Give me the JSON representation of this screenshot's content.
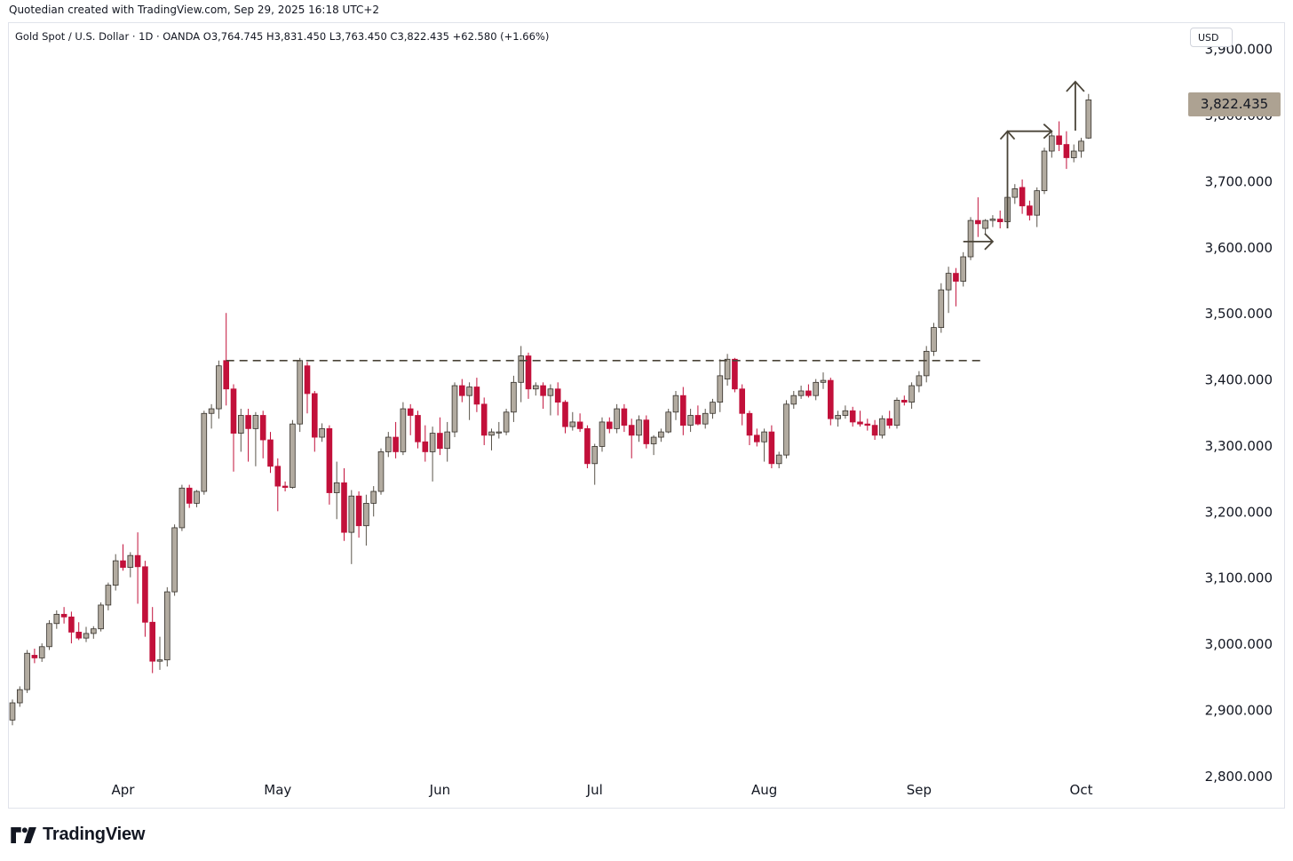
{
  "caption": "Quotedian created with TradingView.com, Sep 29, 2025 16:18 UTC+2",
  "legend": {
    "title": "Gold Spot / U.S. Dollar · 1D · OANDA  O3,764.745  H3,831.450  L3,763.450  C3,822.435  +62.580 (+1.66%)"
  },
  "currency": "USD",
  "last_price": "3,822.435",
  "brand": {
    "name": "TradingView",
    "icon": "tradingview-logo-icon"
  },
  "colors": {
    "up": "#b2aba0",
    "down": "#c2103a",
    "up_border": "#34302a",
    "annotation": "#4a4438",
    "price_tag": "#ada292"
  },
  "chart_data": {
    "type": "candlestick",
    "symbol": "Gold Spot / U.S. Dollar",
    "interval": "1D",
    "exchange": "OANDA",
    "ylim": [
      2750,
      3940
    ],
    "yticks": [
      2800,
      2900,
      3000,
      3100,
      3200,
      3300,
      3400,
      3500,
      3600,
      3700,
      3800,
      3900
    ],
    "ytick_labels": [
      "2,800.000",
      "2,900.000",
      "3,000.000",
      "3,100.000",
      "3,200.000",
      "3,300.000",
      "3,400.000",
      "3,500.000",
      "3,600.000",
      "3,700.000",
      "3,800.000",
      "3,900.000"
    ],
    "xticks": [
      {
        "label": "Apr",
        "index": 15
      },
      {
        "label": "May",
        "index": 36
      },
      {
        "label": "Jun",
        "index": 58
      },
      {
        "label": "Jul",
        "index": 79
      },
      {
        "label": "Aug",
        "index": 102
      },
      {
        "label": "Sep",
        "index": 123
      },
      {
        "label": "Oct",
        "index": 145
      }
    ],
    "resistance_level": 3428,
    "annotations": [
      {
        "type": "dashed-horizontal-line",
        "value": 3428,
        "from_index": 29,
        "to_index": 132
      },
      {
        "type": "right-arrow",
        "from_index": 129,
        "to_index": 133,
        "value": 3608
      },
      {
        "type": "up-right-arrow",
        "from_index": 135,
        "from_value": 3628,
        "corner_value": 3775,
        "to_index": 141
      },
      {
        "type": "up-arrow",
        "index": 143,
        "from_value": 3776,
        "to_value": 3850
      }
    ],
    "candles": [
      {
        "o": 2884,
        "h": 2915,
        "l": 2876,
        "c": 2910
      },
      {
        "o": 2910,
        "h": 2935,
        "l": 2904,
        "c": 2930
      },
      {
        "o": 2930,
        "h": 2990,
        "l": 2925,
        "c": 2985
      },
      {
        "o": 2982,
        "h": 2992,
        "l": 2970,
        "c": 2978
      },
      {
        "o": 2978,
        "h": 3000,
        "l": 2972,
        "c": 2995
      },
      {
        "o": 2995,
        "h": 3035,
        "l": 2990,
        "c": 3030
      },
      {
        "o": 3030,
        "h": 3050,
        "l": 3022,
        "c": 3044
      },
      {
        "o": 3044,
        "h": 3055,
        "l": 3030,
        "c": 3040
      },
      {
        "o": 3040,
        "h": 3048,
        "l": 3000,
        "c": 3017
      },
      {
        "o": 3017,
        "h": 3032,
        "l": 3005,
        "c": 3008
      },
      {
        "o": 3008,
        "h": 3025,
        "l": 3002,
        "c": 3015
      },
      {
        "o": 3015,
        "h": 3026,
        "l": 3007,
        "c": 3022
      },
      {
        "o": 3022,
        "h": 3062,
        "l": 3018,
        "c": 3058
      },
      {
        "o": 3058,
        "h": 3092,
        "l": 3050,
        "c": 3088
      },
      {
        "o": 3088,
        "h": 3135,
        "l": 3080,
        "c": 3125
      },
      {
        "o": 3125,
        "h": 3150,
        "l": 3110,
        "c": 3115
      },
      {
        "o": 3115,
        "h": 3138,
        "l": 3100,
        "c": 3133
      },
      {
        "o": 3133,
        "h": 3168,
        "l": 3060,
        "c": 3116
      },
      {
        "o": 3116,
        "h": 3125,
        "l": 3010,
        "c": 3032
      },
      {
        "o": 3032,
        "h": 3055,
        "l": 2955,
        "c": 2973
      },
      {
        "o": 2973,
        "h": 3010,
        "l": 2960,
        "c": 2975
      },
      {
        "o": 2975,
        "h": 3085,
        "l": 2965,
        "c": 3078
      },
      {
        "o": 3078,
        "h": 3180,
        "l": 3072,
        "c": 3175
      },
      {
        "o": 3175,
        "h": 3240,
        "l": 3170,
        "c": 3235
      },
      {
        "o": 3235,
        "h": 3240,
        "l": 3205,
        "c": 3212
      },
      {
        "o": 3212,
        "h": 3232,
        "l": 3206,
        "c": 3230
      },
      {
        "o": 3230,
        "h": 3352,
        "l": 3225,
        "c": 3348
      },
      {
        "o": 3348,
        "h": 3362,
        "l": 3325,
        "c": 3355
      },
      {
        "o": 3355,
        "h": 3428,
        "l": 3340,
        "c": 3420
      },
      {
        "o": 3428,
        "h": 3500,
        "l": 3360,
        "c": 3385
      },
      {
        "o": 3385,
        "h": 3392,
        "l": 3260,
        "c": 3318
      },
      {
        "o": 3318,
        "h": 3355,
        "l": 3290,
        "c": 3345
      },
      {
        "o": 3345,
        "h": 3355,
        "l": 3275,
        "c": 3325
      },
      {
        "o": 3325,
        "h": 3350,
        "l": 3268,
        "c": 3345
      },
      {
        "o": 3345,
        "h": 3352,
        "l": 3280,
        "c": 3308
      },
      {
        "o": 3308,
        "h": 3320,
        "l": 3258,
        "c": 3268
      },
      {
        "o": 3268,
        "h": 3280,
        "l": 3200,
        "c": 3238
      },
      {
        "o": 3238,
        "h": 3245,
        "l": 3230,
        "c": 3236
      },
      {
        "o": 3236,
        "h": 3338,
        "l": 3234,
        "c": 3332
      },
      {
        "o": 3332,
        "h": 3432,
        "l": 3320,
        "c": 3428
      },
      {
        "o": 3420,
        "h": 3426,
        "l": 3348,
        "c": 3378
      },
      {
        "o": 3378,
        "h": 3382,
        "l": 3290,
        "c": 3312
      },
      {
        "o": 3312,
        "h": 3333,
        "l": 3305,
        "c": 3325
      },
      {
        "o": 3325,
        "h": 3330,
        "l": 3210,
        "c": 3228
      },
      {
        "o": 3228,
        "h": 3275,
        "l": 3188,
        "c": 3243
      },
      {
        "o": 3243,
        "h": 3265,
        "l": 3155,
        "c": 3168
      },
      {
        "o": 3168,
        "h": 3232,
        "l": 3120,
        "c": 3223
      },
      {
        "o": 3223,
        "h": 3230,
        "l": 3160,
        "c": 3178
      },
      {
        "o": 3178,
        "h": 3225,
        "l": 3148,
        "c": 3212
      },
      {
        "o": 3212,
        "h": 3238,
        "l": 3192,
        "c": 3230
      },
      {
        "o": 3230,
        "h": 3295,
        "l": 3225,
        "c": 3290
      },
      {
        "o": 3290,
        "h": 3320,
        "l": 3282,
        "c": 3312
      },
      {
        "o": 3312,
        "h": 3335,
        "l": 3280,
        "c": 3290
      },
      {
        "o": 3290,
        "h": 3365,
        "l": 3285,
        "c": 3355
      },
      {
        "o": 3355,
        "h": 3362,
        "l": 3315,
        "c": 3345
      },
      {
        "o": 3345,
        "h": 3352,
        "l": 3295,
        "c": 3305
      },
      {
        "o": 3305,
        "h": 3330,
        "l": 3275,
        "c": 3290
      },
      {
        "o": 3290,
        "h": 3328,
        "l": 3245,
        "c": 3318
      },
      {
        "o": 3318,
        "h": 3342,
        "l": 3285,
        "c": 3295
      },
      {
        "o": 3295,
        "h": 3335,
        "l": 3275,
        "c": 3320
      },
      {
        "o": 3320,
        "h": 3395,
        "l": 3312,
        "c": 3390
      },
      {
        "o": 3390,
        "h": 3400,
        "l": 3365,
        "c": 3375
      },
      {
        "o": 3375,
        "h": 3395,
        "l": 3338,
        "c": 3388
      },
      {
        "o": 3388,
        "h": 3402,
        "l": 3350,
        "c": 3362
      },
      {
        "o": 3362,
        "h": 3372,
        "l": 3300,
        "c": 3315
      },
      {
        "o": 3315,
        "h": 3325,
        "l": 3292,
        "c": 3320
      },
      {
        "o": 3320,
        "h": 3335,
        "l": 3310,
        "c": 3320
      },
      {
        "o": 3320,
        "h": 3355,
        "l": 3315,
        "c": 3350
      },
      {
        "o": 3350,
        "h": 3405,
        "l": 3335,
        "c": 3395
      },
      {
        "o": 3395,
        "h": 3450,
        "l": 3365,
        "c": 3435
      },
      {
        "o": 3435,
        "h": 3440,
        "l": 3370,
        "c": 3385
      },
      {
        "o": 3385,
        "h": 3395,
        "l": 3375,
        "c": 3390
      },
      {
        "o": 3390,
        "h": 3395,
        "l": 3355,
        "c": 3375
      },
      {
        "o": 3375,
        "h": 3392,
        "l": 3345,
        "c": 3385
      },
      {
        "o": 3385,
        "h": 3395,
        "l": 3345,
        "c": 3365
      },
      {
        "o": 3365,
        "h": 3368,
        "l": 3318,
        "c": 3328
      },
      {
        "o": 3328,
        "h": 3350,
        "l": 3322,
        "c": 3335
      },
      {
        "o": 3335,
        "h": 3348,
        "l": 3320,
        "c": 3325
      },
      {
        "o": 3325,
        "h": 3330,
        "l": 3265,
        "c": 3272
      },
      {
        "o": 3272,
        "h": 3302,
        "l": 3240,
        "c": 3298
      },
      {
        "o": 3298,
        "h": 3342,
        "l": 3290,
        "c": 3335
      },
      {
        "o": 3335,
        "h": 3342,
        "l": 3318,
        "c": 3325
      },
      {
        "o": 3325,
        "h": 3362,
        "l": 3318,
        "c": 3355
      },
      {
        "o": 3355,
        "h": 3362,
        "l": 3320,
        "c": 3330
      },
      {
        "o": 3330,
        "h": 3340,
        "l": 3280,
        "c": 3315
      },
      {
        "o": 3315,
        "h": 3345,
        "l": 3305,
        "c": 3338
      },
      {
        "o": 3338,
        "h": 3345,
        "l": 3295,
        "c": 3302
      },
      {
        "o": 3302,
        "h": 3315,
        "l": 3285,
        "c": 3312
      },
      {
        "o": 3312,
        "h": 3325,
        "l": 3305,
        "c": 3320
      },
      {
        "o": 3320,
        "h": 3355,
        "l": 3318,
        "c": 3350
      },
      {
        "o": 3350,
        "h": 3382,
        "l": 3338,
        "c": 3375
      },
      {
        "o": 3375,
        "h": 3388,
        "l": 3315,
        "c": 3330
      },
      {
        "o": 3330,
        "h": 3355,
        "l": 3320,
        "c": 3345
      },
      {
        "o": 3345,
        "h": 3360,
        "l": 3330,
        "c": 3332
      },
      {
        "o": 3332,
        "h": 3355,
        "l": 3325,
        "c": 3348
      },
      {
        "o": 3348,
        "h": 3370,
        "l": 3340,
        "c": 3365
      },
      {
        "o": 3365,
        "h": 3430,
        "l": 3350,
        "c": 3405
      },
      {
        "o": 3400,
        "h": 3438,
        "l": 3390,
        "c": 3430
      },
      {
        "o": 3430,
        "h": 3432,
        "l": 3380,
        "c": 3385
      },
      {
        "o": 3385,
        "h": 3392,
        "l": 3330,
        "c": 3348
      },
      {
        "o": 3348,
        "h": 3352,
        "l": 3300,
        "c": 3315
      },
      {
        "o": 3315,
        "h": 3325,
        "l": 3298,
        "c": 3305
      },
      {
        "o": 3305,
        "h": 3325,
        "l": 3275,
        "c": 3320
      },
      {
        "o": 3320,
        "h": 3330,
        "l": 3265,
        "c": 3272
      },
      {
        "o": 3272,
        "h": 3290,
        "l": 3265,
        "c": 3285
      },
      {
        "o": 3285,
        "h": 3368,
        "l": 3280,
        "c": 3362
      },
      {
        "o": 3362,
        "h": 3382,
        "l": 3355,
        "c": 3375
      },
      {
        "o": 3375,
        "h": 3390,
        "l": 3370,
        "c": 3382
      },
      {
        "o": 3382,
        "h": 3392,
        "l": 3372,
        "c": 3375
      },
      {
        "o": 3375,
        "h": 3400,
        "l": 3368,
        "c": 3395
      },
      {
        "o": 3395,
        "h": 3410,
        "l": 3385,
        "c": 3398
      },
      {
        "o": 3398,
        "h": 3402,
        "l": 3330,
        "c": 3340
      },
      {
        "o": 3340,
        "h": 3352,
        "l": 3328,
        "c": 3345
      },
      {
        "o": 3345,
        "h": 3360,
        "l": 3340,
        "c": 3352
      },
      {
        "o": 3352,
        "h": 3358,
        "l": 3328,
        "c": 3335
      },
      {
        "o": 3335,
        "h": 3352,
        "l": 3328,
        "c": 3332
      },
      {
        "o": 3332,
        "h": 3340,
        "l": 3322,
        "c": 3330
      },
      {
        "o": 3330,
        "h": 3338,
        "l": 3308,
        "c": 3315
      },
      {
        "o": 3315,
        "h": 3345,
        "l": 3310,
        "c": 3340
      },
      {
        "o": 3340,
        "h": 3352,
        "l": 3325,
        "c": 3330
      },
      {
        "o": 3330,
        "h": 3372,
        "l": 3325,
        "c": 3368
      },
      {
        "o": 3368,
        "h": 3375,
        "l": 3360,
        "c": 3365
      },
      {
        "o": 3365,
        "h": 3395,
        "l": 3355,
        "c": 3390
      },
      {
        "o": 3390,
        "h": 3412,
        "l": 3380,
        "c": 3405
      },
      {
        "o": 3405,
        "h": 3450,
        "l": 3395,
        "c": 3442
      },
      {
        "o": 3442,
        "h": 3485,
        "l": 3435,
        "c": 3478
      },
      {
        "o": 3478,
        "h": 3545,
        "l": 3470,
        "c": 3535
      },
      {
        "o": 3535,
        "h": 3570,
        "l": 3500,
        "c": 3560
      },
      {
        "o": 3560,
        "h": 3568,
        "l": 3510,
        "c": 3548
      },
      {
        "o": 3548,
        "h": 3592,
        "l": 3540,
        "c": 3585
      },
      {
        "o": 3585,
        "h": 3645,
        "l": 3580,
        "c": 3640
      },
      {
        "o": 3640,
        "h": 3675,
        "l": 3615,
        "c": 3635
      },
      {
        "o": 3628,
        "h": 3642,
        "l": 3618,
        "c": 3640
      },
      {
        "o": 3640,
        "h": 3648,
        "l": 3630,
        "c": 3642
      },
      {
        "o": 3642,
        "h": 3655,
        "l": 3628,
        "c": 3638
      },
      {
        "o": 3638,
        "h": 3680,
        "l": 3632,
        "c": 3675
      },
      {
        "o": 3675,
        "h": 3695,
        "l": 3665,
        "c": 3688
      },
      {
        "o": 3690,
        "h": 3702,
        "l": 3650,
        "c": 3662
      },
      {
        "o": 3662,
        "h": 3670,
        "l": 3640,
        "c": 3648
      },
      {
        "o": 3648,
        "h": 3690,
        "l": 3630,
        "c": 3685
      },
      {
        "o": 3685,
        "h": 3750,
        "l": 3680,
        "c": 3745
      },
      {
        "o": 3745,
        "h": 3775,
        "l": 3735,
        "c": 3768
      },
      {
        "o": 3768,
        "h": 3790,
        "l": 3745,
        "c": 3755
      },
      {
        "o": 3755,
        "h": 3775,
        "l": 3718,
        "c": 3735
      },
      {
        "o": 3735,
        "h": 3755,
        "l": 3728,
        "c": 3745
      },
      {
        "o": 3745,
        "h": 3765,
        "l": 3735,
        "c": 3760
      },
      {
        "o": 3764.745,
        "h": 3831.45,
        "l": 3763.45,
        "c": 3822.435
      }
    ]
  }
}
